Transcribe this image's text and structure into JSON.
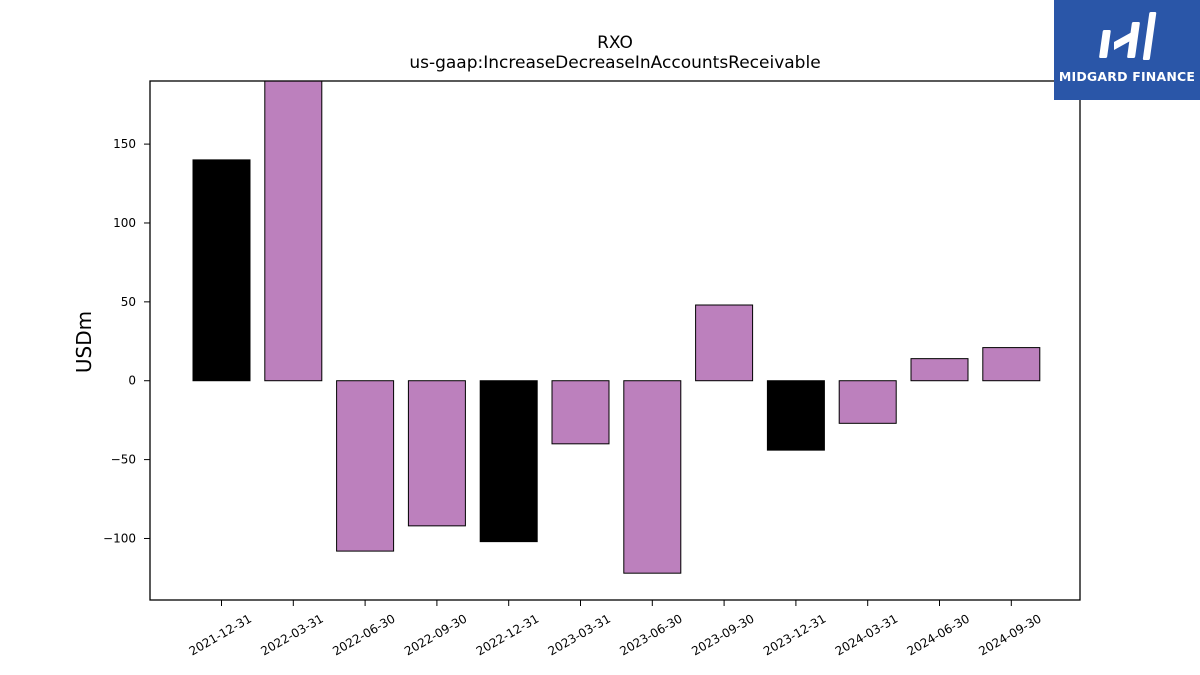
{
  "chart_data": {
    "type": "bar",
    "title": "RXO",
    "subtitle": "us-gaap:IncreaseDecreaseInAccountsReceivable",
    "xlabel": "",
    "ylabel": "USDm",
    "categories": [
      "2021-12-31",
      "2022-03-31",
      "2022-06-30",
      "2022-09-30",
      "2022-12-31",
      "2023-03-31",
      "2023-06-30",
      "2023-09-30",
      "2023-12-31",
      "2024-03-31",
      "2024-06-30",
      "2024-09-30"
    ],
    "values": [
      140,
      190,
      -108,
      -92,
      -102,
      -40,
      -122,
      48,
      -44,
      -27,
      14,
      21
    ],
    "bar_colors": [
      "#000000",
      "#bc80bd",
      "#bc80bd",
      "#bc80bd",
      "#000000",
      "#bc80bd",
      "#bc80bd",
      "#bc80bd",
      "#000000",
      "#bc80bd",
      "#bc80bd",
      "#bc80bd"
    ],
    "ylim": [
      -139,
      190
    ],
    "yticks": [
      -100,
      -50,
      0,
      50,
      100,
      150
    ],
    "ytick_labels": [
      "−100",
      "−50",
      "0",
      "50",
      "100",
      "150"
    ],
    "grid": false,
    "legend": "none"
  },
  "logo": {
    "text": "MIDGARD FINANCE",
    "background": "#2a56a8"
  }
}
